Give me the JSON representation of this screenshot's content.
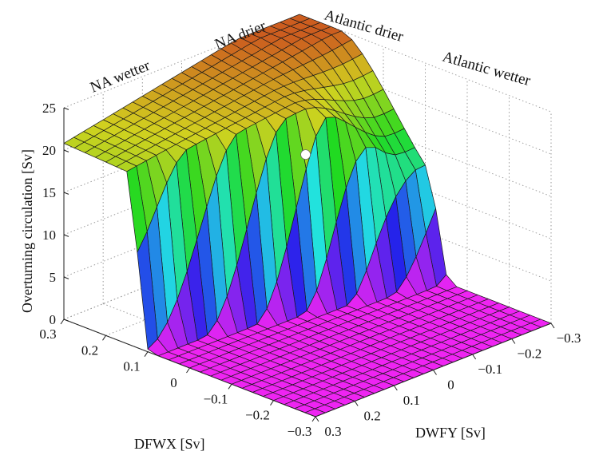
{
  "chart_data": {
    "type": "surface",
    "title": "",
    "xlabel": "DFWX [Sv]",
    "ylabel": "DWFY [Sv]",
    "zlabel": "Overturning circulation [Sv]",
    "x_ticks": [
      "0.3",
      "0.2",
      "0.1",
      "0",
      "−0.1",
      "−0.2",
      "−0.3"
    ],
    "y_ticks": [
      "0.3",
      "0.2",
      "0.1",
      "0",
      "−0.1",
      "−0.2",
      "−0.3"
    ],
    "z_ticks": [
      "0",
      "5",
      "10",
      "15",
      "20",
      "25"
    ],
    "xlim": [
      -0.3,
      0.3
    ],
    "ylim": [
      -0.3,
      0.3
    ],
    "zlim": [
      0,
      25
    ],
    "grid": true,
    "colormap": "hsv-like (magenta low → blue → cyan → green → yellow → orange high)",
    "region_labels": [
      "NA wetter",
      "NA drier",
      "Atlantic drier",
      "Atlantic wetter"
    ],
    "marker": {
      "x": 0,
      "y": 0,
      "z": 17,
      "color": "#ffffff"
    },
    "surface_description_levels": {
      "high_plateau_max": 25,
      "plateau_at_x_0.3": 19,
      "collapsed_state": 0
    }
  }
}
